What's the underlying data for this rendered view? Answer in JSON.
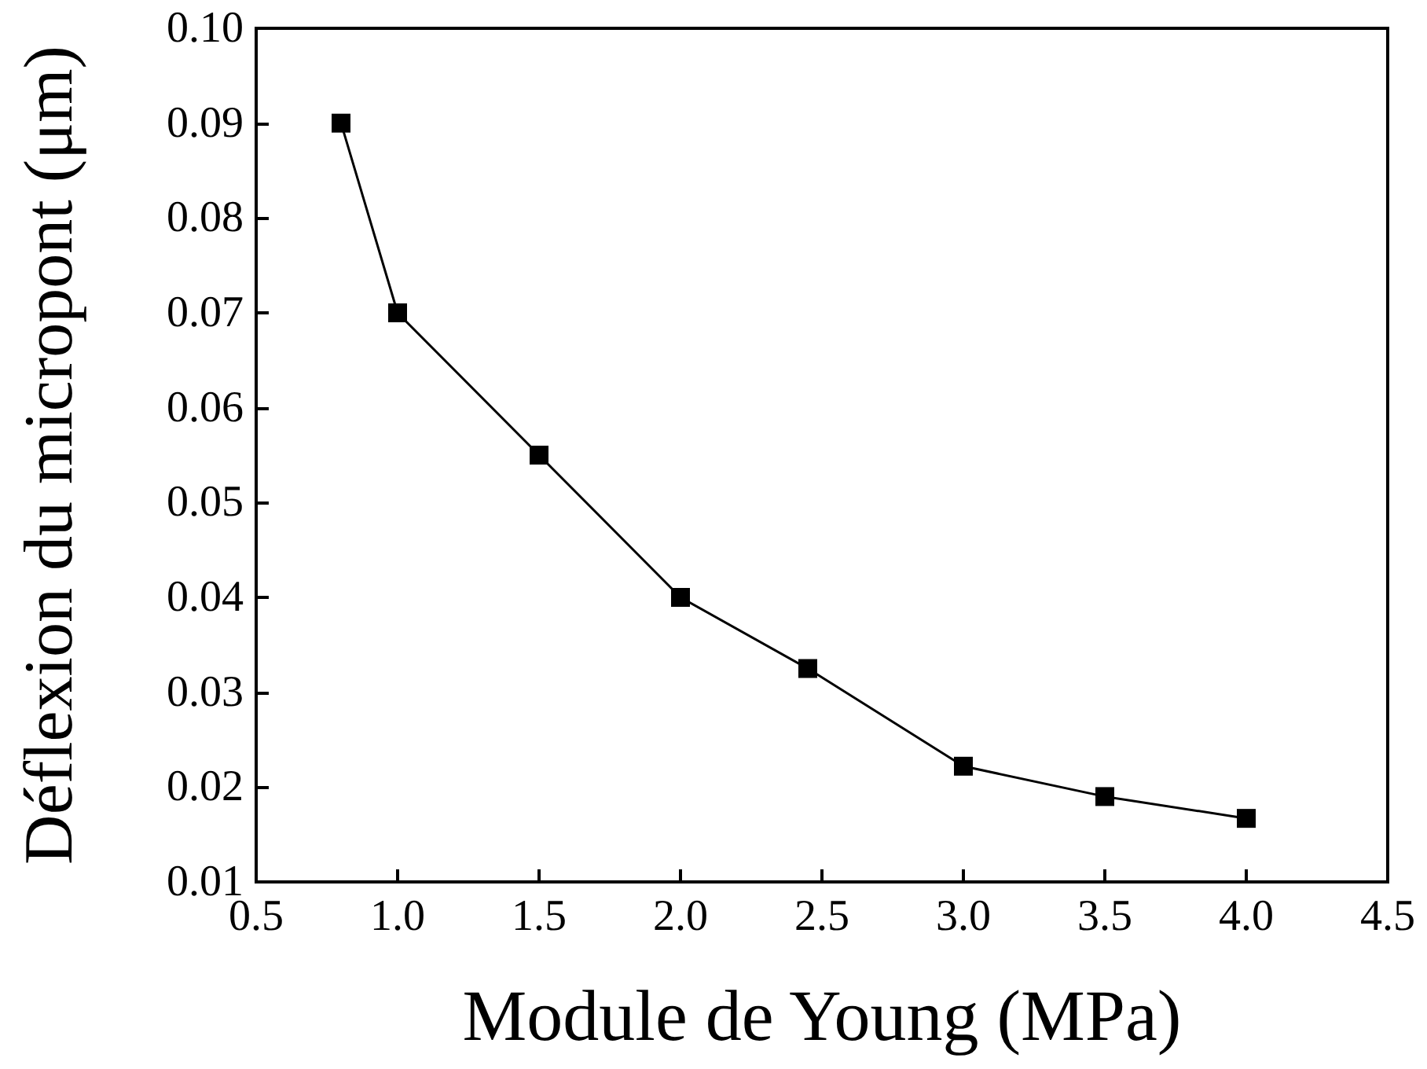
{
  "chart_data": {
    "type": "line",
    "xlabel": "Module de Young (MPa)",
    "ylabel": "Déflexion du micropont (μm)",
    "x": [
      0.8,
      1.0,
      1.5,
      2.0,
      2.45,
      3.0,
      3.5,
      4.0
    ],
    "series": [
      {
        "color": "#000000",
        "values": [
          0.09,
          0.07,
          0.055,
          0.04,
          0.0325,
          0.0222,
          0.019,
          0.0167
        ]
      }
    ],
    "xlim": [
      0.5,
      4.5
    ],
    "xticks": [
      0.5,
      {
        "value": 1,
        "label": "1.0"
      },
      1.5,
      {
        "value": 2,
        "label": "2.0"
      },
      2.5,
      {
        "value": 3,
        "label": "3.0"
      },
      3.5,
      {
        "value": 4,
        "label": "4.0"
      },
      4.5
    ],
    "ylim": [
      0.01,
      0.1
    ],
    "yticks": [
      0.01,
      0.02,
      0.03,
      0.04,
      0.05,
      0.06,
      0.07,
      0.08,
      0.09,
      {
        "value": 0.1,
        "label": "0.10"
      }
    ],
    "marker": "square",
    "line_style": "solid"
  }
}
